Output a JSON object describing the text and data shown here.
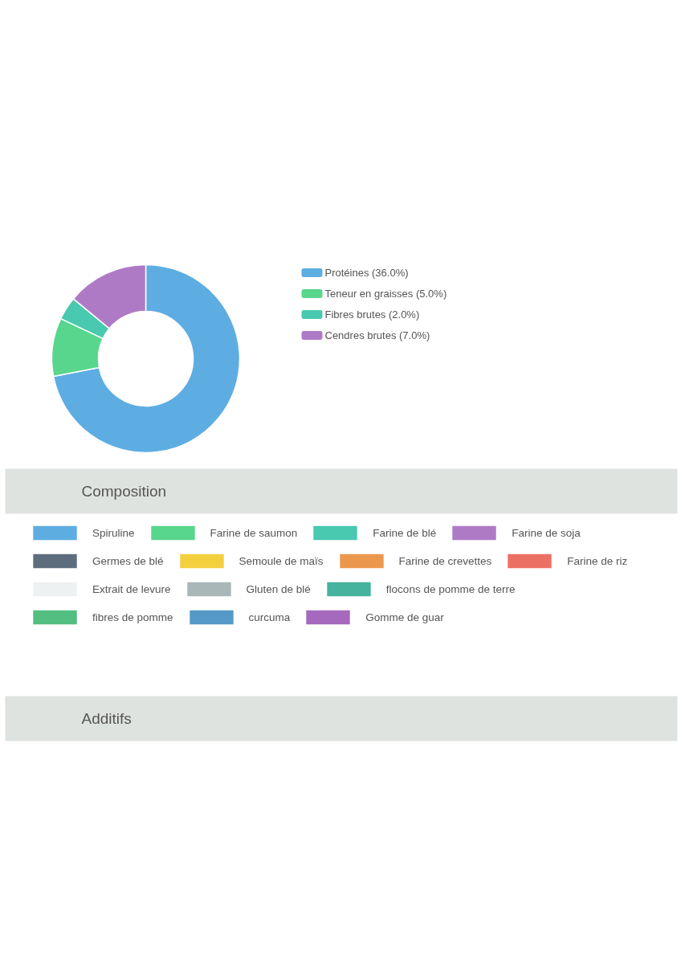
{
  "chart_data": [
    {
      "type": "donut",
      "categories": [
        "Protéines (36.0%)",
        "Teneur en graisses (5.0%)",
        "Fibres brutes (2.0%)",
        "Cendres brutes (7.0%)"
      ],
      "values": [
        36,
        5,
        2,
        7
      ],
      "colors": [
        "#5dade2",
        "#58d68d",
        "#48c9b0",
        "#af7ac5"
      ],
      "legend": "right"
    },
    {
      "type": "other",
      "title": "Composition",
      "categories": [
        "Spiruline",
        "Farine de saumon",
        "Farine de blé",
        "Farine de soja",
        "Germes de blé",
        "Semoule de maïs",
        "Farine de crevettes",
        "Farine de riz",
        "Extrait de levure",
        "Gluten de blé",
        "flocons de pomme de terre",
        "fibres de pomme",
        "curcuma",
        "Gomme de guar"
      ],
      "colors": [
        "#5dade2",
        "#58d68d",
        "#48c9b0",
        "#af7ac5",
        "#5d6d7e",
        "#f4d03f",
        "#eb984e",
        "#ec7063",
        "#eef1f2",
        "#aab7b8",
        "#45b39d",
        "#52be80",
        "#5499c7",
        "#a569bd"
      ]
    },
    {
      "type": "other",
      "title": "Additifs"
    }
  ]
}
